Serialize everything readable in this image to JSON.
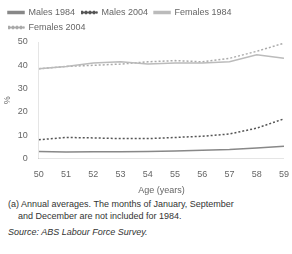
{
  "chart_data": {
    "type": "line",
    "x": [
      50,
      51,
      52,
      53,
      54,
      55,
      56,
      57,
      58,
      59
    ],
    "series": [
      {
        "name": "Males 1984",
        "color": "#888888",
        "line_style": "solid",
        "values": [
          3.0,
          2.8,
          2.9,
          2.9,
          3.0,
          3.2,
          3.5,
          3.8,
          4.5,
          5.2
        ]
      },
      {
        "name": "Males 2004",
        "color": "#555555",
        "line_style": "dotted",
        "values": [
          8.0,
          9.0,
          8.8,
          8.5,
          8.5,
          9.0,
          9.5,
          10.5,
          13.0,
          17.0
        ]
      },
      {
        "name": "Females 1984",
        "color": "#bbbbbb",
        "line_style": "solid",
        "values": [
          38.5,
          39.5,
          41.0,
          41.5,
          40.5,
          41.0,
          41.0,
          41.5,
          44.5,
          43.0
        ]
      },
      {
        "name": "Females 2004",
        "color": "#aaaaaa",
        "line_style": "dotted",
        "values": [
          38.5,
          39.5,
          40.0,
          40.5,
          41.5,
          42.0,
          41.5,
          43.0,
          46.0,
          49.5
        ]
      }
    ],
    "x_label": "Age (years)",
    "y_label": "%",
    "xlim": [
      50,
      59
    ],
    "xticks": [
      50,
      51,
      52,
      53,
      54,
      55,
      56,
      57,
      58,
      59
    ],
    "ylim": [
      0,
      50
    ],
    "yticks": [
      0,
      10,
      20,
      30,
      40,
      50
    ],
    "grid": false,
    "legend": "upper left",
    "annotations": [
      "(a) Annual averages. The months of January, September",
      "    and December are not included for 1984.",
      "Source: ABS Labour Force Survey."
    ]
  }
}
